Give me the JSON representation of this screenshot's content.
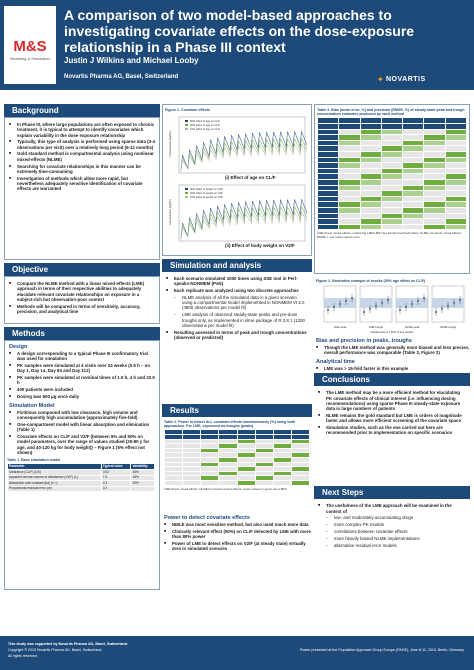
{
  "header": {
    "logo_text": "M&S",
    "logo_sub": "Modeling & Simulation",
    "title": "A comparison of two model-based approaches to investigating covariate effects on the dose-exposure relationship in a Phase III context",
    "authors": "Justin J Wilkins and Michael Looby",
    "affiliation": "Novartis Pharma AG, Basel, Switzerland",
    "company": "NOVARTIS",
    "company_icon": "flame-icon"
  },
  "background": {
    "heading": "Background",
    "bullets": [
      "In Phase III, where large populations are often exposed to chronic treatment, it is typical to attempt to identify covariates which explain variability in the dose exposure relationship",
      "Typically, this type of analysis is performed using sparse data (3-4 observations per visit) over a relatively long period (6-12 months)",
      "Gold standard method is compartmental analysis using nonlinear mixed-effects (NLME)",
      "Searching for covariate relationships in this manner can be extremely time-consuming",
      "Investigation of methods which allow more rapid, but nevertheless adequately sensitive identification of covariate effects are warranted"
    ]
  },
  "objective": {
    "heading": "Objective",
    "bullets": [
      "Compare the NLME method with a linear mixed-effects (LME) approach in terms of their respective abilities to adequately elucidate relevant covariate relationships on exposure in a subject-rich but observation-poor context",
      "Methods will be compared in terms of sensitivity, accuracy, precision, and analytical time"
    ]
  },
  "methods": {
    "heading": "Methods",
    "design_heading": "Design",
    "design_bullets": [
      "A design corresponding to a typical Phase III confirmatory trial was used for simulation",
      "PK samples were simulated at 4 visits over 24 weeks (0.5 h – on Day 1, Day 14, Day 84 and Day 112)",
      "PK samples were simulated at nominal times of 1.5 h, 4 h and 23.5 h",
      "400 patients were included",
      "Dosing was 600 µg once daily"
    ],
    "sim_heading": "Simulation Model",
    "sim_bullets": [
      "Fictitious compound with low clearance, high volume and consequently high accumulation (approximately five-fold)",
      "One-compartment model with linear absorption and elimination (Table 1)",
      "Covariate effects on CL/F and V2/F (between 5% and 50% on model parameters, over the range of values studied (20-80 y for age, and 40-120 kg for body weight)) – Figure 1 (5% effect not shown)"
    ],
    "table1_caption": "Table 1. Base simulation model",
    "table1_headers": [
      "Parameter",
      "Typical value",
      "Variability"
    ],
    "table1_rows": [
      [
        "Clearance (CL/F) (L/h)",
        "0.52",
        "25%"
      ],
      [
        "Apparent central volume of distribution (V2/F) (L)",
        "7.5",
        "18%"
      ],
      [
        "Absorption rate constant (ka) (h⁻¹)",
        "2.3",
        "20%"
      ],
      [
        "Proportional residual error (σ²)",
        "0.2",
        "-"
      ]
    ]
  },
  "figure1": {
    "caption": "Figure 1. Covariate effects",
    "panel_a_label": "(i) Effect of age on CL/F",
    "panel_b_label": "(ii) Effect of body weight on V2/F",
    "ylabel": "Concentration (ng/mL)",
    "xlabel": "Time (h)",
    "legend_a": [
      "50% effect of age on CL/F",
      "20% effect of age on CL/F",
      "10% effect of age on CL/F"
    ],
    "legend_b": [
      "50% effect of weight on V2/F",
      "20% effect of weight on V2/F",
      "10% effect of weight on V2/F"
    ],
    "series_colors": [
      "#1e4a7a",
      "#6fae3e",
      "#b0b0b0"
    ]
  },
  "simulation": {
    "heading": "Simulation and analysis",
    "bullets": [
      "Each scenario simulated 1000 times using SSE tool in Perl-speaks-NONMEM (PsN)",
      "Each replicate was analyzed using two discrete approaches"
    ],
    "sub_bullets": [
      "NLME analysis of all the simulated data in a given scenario using a compartmental model implemented in NONMEM VI 2.0 (4800 observations per model fit)",
      "LME analysis of observed steady-state peaks and pre-dose troughs only, as implemented in nlme package of R 2.8.1 (1200 observations per model fit)"
    ],
    "last_bullet": "Resulting assessed in terms of peak and trough concentrations (observed or predicted)"
  },
  "results": {
    "heading": "Results",
    "table2_caption": "Table 2. Power to detect ALL covariate effects simultaneously (%) using both approaches. For LME, expressed as troughs (peaks)",
    "table2_footnote": "LME=linear mixed effects, NLME=non-linear mixed effects; power values in green are ≥ 80%",
    "power_heading": "Power to detect covariate effects",
    "power_bullets": [
      "NMLE was most sensitive method, but also used much more data",
      "Clinically relevant effect (50%) on CL/F detected by LME with more than 80% power",
      "Power of LME to detect effects on V2/F (at steady state) virtually zero in simulated scenario"
    ]
  },
  "table3": {
    "caption": "Table 3. Bias (mean error, %) and precision (RMSE, %) of steady-state peak and trough concentration estimates produced by each method",
    "footnote": "LME=linear mixed effects, ordinal log LME/LME? log-transformed both sides; NLME non-linear mixed effects; RMSE = root mean square error"
  },
  "figure2": {
    "caption": "Figure 2. Illustrative example of results (50% age effect on CL/F)",
    "xlabel": "Shaded area is ± 95% of true median",
    "categories": [
      "LME peak",
      "LME trough",
      "NLME peak",
      "NLME trough"
    ]
  },
  "bias": {
    "heading": "Bias and precision in peaks, troughs",
    "bullets": [
      "Though the LME method was generally more biased and less precise, overall performance was comparable (Table 3, Figure 2)"
    ]
  },
  "analytical": {
    "heading": "Analytical time",
    "bullets": [
      "LME was > 15-fold faster in this example"
    ]
  },
  "conclusions": {
    "heading": "Conclusions",
    "bullets": [
      "The LME method may be a more efficient method for elucidating PK covariate effects of clinical interest (i.e. influencing dosing recommendations) using sparse Phase III steady-state exposure data in large numbers of patients",
      "NLME remains the gold standard but LME is orders of magnitude faster and allows more efficient screening of the covariate space",
      "Simulation studies, such as the one carried out here are recommended prior to implementation on specific scenarios"
    ]
  },
  "next_steps": {
    "heading": "Next Steps",
    "intro": "The usefulness of the LME approach will be examined in the context of",
    "items": [
      "low- and moderately-accumulating drugs",
      "more complex PK models",
      "correlations between covariate effects",
      "more heavily biased NLME implementations",
      "alternative residual error models"
    ]
  },
  "footer": {
    "left_1": "This study was supported by Novartis Pharma AG, Basel, Switzerland.",
    "left_2": "Copyright © 2010 Novartis Pharma AG, Basel, Switzerland.",
    "left_3": "All rights reserved.",
    "right": "Poster presented at the Population Approach Group Europe (PAGE), June 8-11, 2010, Berlin, Germany."
  }
}
